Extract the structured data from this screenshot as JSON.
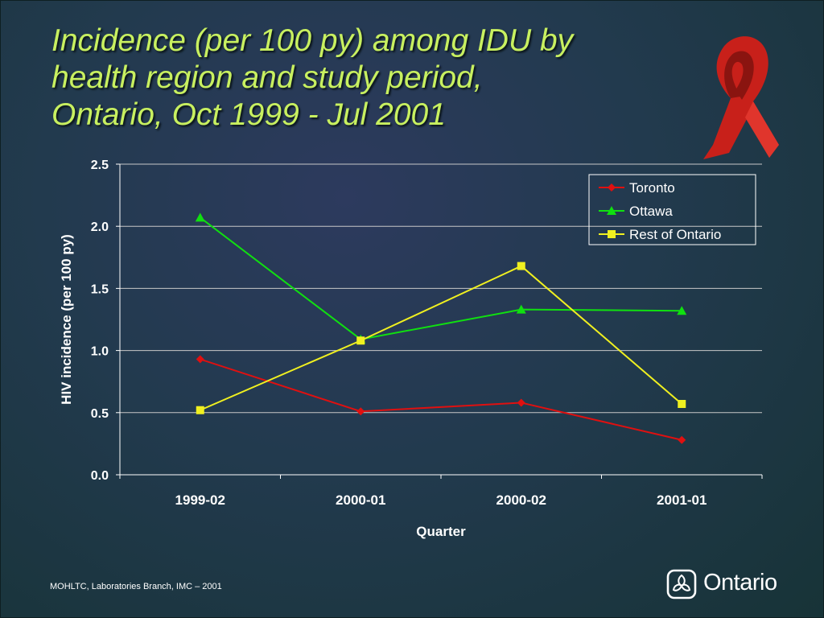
{
  "title_lines": [
    "Incidence (per 100 py) among IDU by",
    "health region and study period,",
    "Ontario, Oct 1999 - Jul 2001"
  ],
  "footer": "MOHLTC, Laboratories Branch, IMC – 2001",
  "logo_text": "Ontario",
  "colors": {
    "title": "#c8f060",
    "axis_text": "#ffffff",
    "gridline": "#c8c8c8",
    "ribbon": "#d42a22"
  },
  "chart_data": {
    "type": "line",
    "categories": [
      "1999-02",
      "2000-01",
      "2000-02",
      "2001-01"
    ],
    "xlabel": "Quarter",
    "ylabel": "HIV incidence (per 100 py)",
    "ylim": [
      0,
      2.5
    ],
    "yticks": [
      "0.0",
      "0.5",
      "1.0",
      "1.5",
      "2.0",
      "2.5"
    ],
    "grid": true,
    "legend_position": "top-right",
    "series": [
      {
        "name": "Toronto",
        "color": "#e01010",
        "marker": "diamond",
        "values": [
          0.93,
          0.51,
          0.58,
          0.28
        ]
      },
      {
        "name": "Ottawa",
        "color": "#10e010",
        "marker": "triangle",
        "values": [
          2.07,
          1.09,
          1.33,
          1.32
        ]
      },
      {
        "name": "Rest of Ontario",
        "color": "#f0f020",
        "marker": "square",
        "values": [
          0.52,
          1.08,
          1.68,
          0.57
        ]
      }
    ]
  }
}
